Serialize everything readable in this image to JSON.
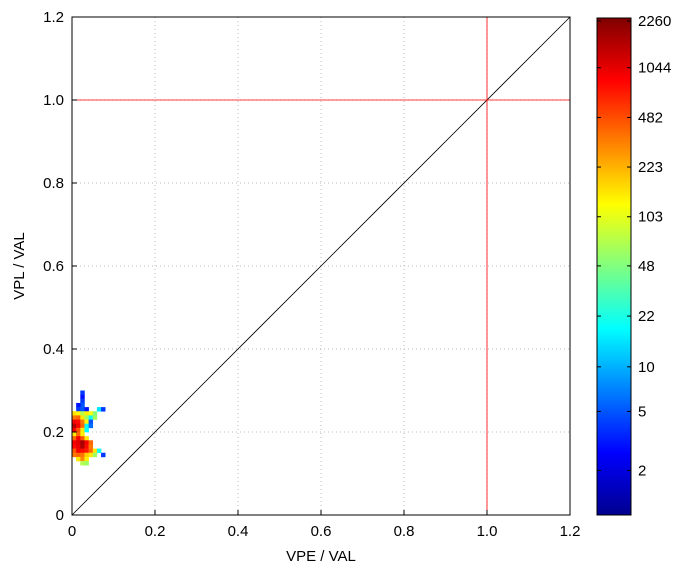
{
  "chart_data": {
    "type": "heatmap",
    "title": "",
    "xlabel": "VPE / VAL",
    "ylabel": "VPL / VAL",
    "xlim": [
      0,
      1.2
    ],
    "ylim": [
      0,
      1.2
    ],
    "xticks": [
      "0",
      "0.2",
      "0.4",
      "0.6",
      "0.8",
      "1.0",
      "1.2"
    ],
    "yticks": [
      "0",
      "0.2",
      "0.4",
      "0.6",
      "0.8",
      "1.0",
      "1.2"
    ],
    "grid": true,
    "bin_size": 0.01,
    "reference_lines": {
      "diagonal": "y = x",
      "vertical_x": 1.0,
      "horizontal_y": 1.0,
      "limit_color": "#ff0000"
    },
    "colorbar": {
      "scale": "log",
      "range": [
        1,
        2260
      ],
      "tick_values": [
        2260,
        1044,
        482,
        223,
        103,
        48,
        22,
        10,
        5,
        2
      ],
      "tick_labels": [
        "2260",
        "1044",
        "482",
        "223",
        "103",
        "48",
        "22",
        "10",
        "5",
        "2"
      ],
      "colormap": "jet"
    },
    "cells": [
      [
        0.02,
        0.29,
        4
      ],
      [
        0.02,
        0.28,
        3
      ],
      [
        0.02,
        0.27,
        4
      ],
      [
        0.02,
        0.26,
        5
      ],
      [
        0.01,
        0.26,
        3
      ],
      [
        0.01,
        0.25,
        4
      ],
      [
        0.02,
        0.25,
        5
      ],
      [
        0.03,
        0.25,
        3
      ],
      [
        0.06,
        0.25,
        15
      ],
      [
        0.07,
        0.25,
        4
      ],
      [
        0.0,
        0.24,
        150
      ],
      [
        0.01,
        0.24,
        130
      ],
      [
        0.02,
        0.24,
        70
      ],
      [
        0.03,
        0.24,
        140
      ],
      [
        0.04,
        0.24,
        120
      ],
      [
        0.05,
        0.24,
        50
      ],
      [
        0.0,
        0.23,
        350
      ],
      [
        0.01,
        0.23,
        400
      ],
      [
        0.02,
        0.23,
        150
      ],
      [
        0.03,
        0.23,
        60
      ],
      [
        0.04,
        0.23,
        20
      ],
      [
        0.05,
        0.23,
        60
      ],
      [
        0.0,
        0.22,
        900
      ],
      [
        0.01,
        0.22,
        800
      ],
      [
        0.02,
        0.22,
        350
      ],
      [
        0.03,
        0.22,
        130
      ],
      [
        0.04,
        0.22,
        5
      ],
      [
        0.0,
        0.21,
        1500
      ],
      [
        0.01,
        0.21,
        900
      ],
      [
        0.02,
        0.21,
        400
      ],
      [
        0.03,
        0.21,
        20
      ],
      [
        0.04,
        0.21,
        6
      ],
      [
        0.0,
        0.2,
        900
      ],
      [
        0.01,
        0.2,
        450
      ],
      [
        0.02,
        0.2,
        150
      ],
      [
        0.03,
        0.2,
        18
      ],
      [
        0.0,
        0.19,
        150
      ],
      [
        0.01,
        0.19,
        400
      ],
      [
        0.02,
        0.19,
        140
      ],
      [
        0.0,
        0.18,
        400
      ],
      [
        0.01,
        0.18,
        900
      ],
      [
        0.02,
        0.18,
        450
      ],
      [
        0.03,
        0.18,
        150
      ],
      [
        0.0,
        0.17,
        900
      ],
      [
        0.01,
        0.17,
        1100
      ],
      [
        0.02,
        0.17,
        1700
      ],
      [
        0.03,
        0.17,
        900
      ],
      [
        0.04,
        0.17,
        400
      ],
      [
        0.0,
        0.16,
        800
      ],
      [
        0.01,
        0.16,
        1000
      ],
      [
        0.02,
        0.16,
        1600
      ],
      [
        0.03,
        0.16,
        800
      ],
      [
        0.04,
        0.16,
        350
      ],
      [
        0.0,
        0.15,
        450
      ],
      [
        0.01,
        0.15,
        900
      ],
      [
        0.02,
        0.15,
        800
      ],
      [
        0.03,
        0.15,
        700
      ],
      [
        0.04,
        0.15,
        400
      ],
      [
        0.05,
        0.15,
        150
      ],
      [
        0.06,
        0.15,
        20
      ],
      [
        0.0,
        0.14,
        350
      ],
      [
        0.01,
        0.14,
        400
      ],
      [
        0.02,
        0.14,
        350
      ],
      [
        0.03,
        0.14,
        180
      ],
      [
        0.04,
        0.14,
        150
      ],
      [
        0.05,
        0.14,
        60
      ],
      [
        0.07,
        0.14,
        4
      ],
      [
        0.01,
        0.13,
        150
      ],
      [
        0.02,
        0.13,
        300
      ],
      [
        0.03,
        0.13,
        140
      ],
      [
        0.02,
        0.12,
        70
      ],
      [
        0.03,
        0.12,
        60
      ]
    ]
  }
}
